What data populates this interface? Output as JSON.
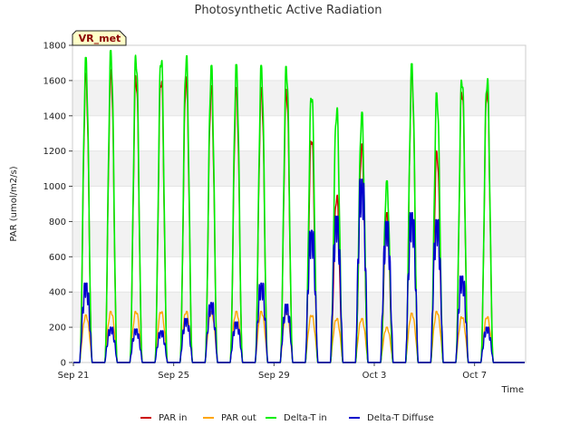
{
  "chart_data": {
    "type": "line",
    "title": "Photosynthetic Active Radiation",
    "xlabel": "Time",
    "ylabel": "PAR (umol/m2/s)",
    "badge": "VR_met",
    "ylim": [
      0,
      1800
    ],
    "yticks": [
      0,
      200,
      400,
      600,
      800,
      1000,
      1200,
      1400,
      1600,
      1800
    ],
    "xlim": [
      "2023-09-21",
      "2023-10-09"
    ],
    "xticks": [
      "Sep 21",
      "Sep 25",
      "Sep 29",
      "Oct 3",
      "Oct 7"
    ],
    "xtick_days": [
      0,
      4,
      8,
      12,
      16
    ],
    "grid": "horizontal bands",
    "legend_position": "bottom",
    "days": [
      "Sep 21",
      "Sep 22",
      "Sep 23",
      "Sep 24",
      "Sep 25",
      "Sep 26",
      "Sep 27",
      "Sep 28",
      "Sep 29",
      "Sep 30",
      "Oct 1",
      "Oct 2",
      "Oct 3",
      "Oct 4",
      "Oct 5",
      "Oct 6",
      "Oct 7",
      "Oct 8"
    ],
    "series": [
      {
        "name": "PAR in",
        "color": "#cc0000",
        "daily_peak": [
          1640,
          1660,
          1630,
          1630,
          1620,
          1570,
          1560,
          1560,
          1550,
          1290,
          950,
          1240,
          850,
          1650,
          1200,
          1560,
          1560,
          0
        ]
      },
      {
        "name": "PAR out",
        "color": "#ffa500",
        "daily_peak": [
          270,
          290,
          290,
          290,
          290,
          290,
          290,
          290,
          290,
          270,
          250,
          250,
          200,
          280,
          290,
          260,
          260,
          0
        ]
      },
      {
        "name": "Delta-T in",
        "color": "#00ee00",
        "daily_peak": [
          1730,
          1770,
          1745,
          1750,
          1740,
          1685,
          1690,
          1685,
          1680,
          1540,
          1445,
          1420,
          1030,
          1695,
          1530,
          1630,
          1620,
          0
        ]
      },
      {
        "name": "Delta-T Diffuse",
        "color": "#0000cc",
        "daily_peak": [
          450,
          200,
          190,
          180,
          250,
          340,
          230,
          450,
          330,
          750,
          830,
          1040,
          800,
          850,
          810,
          490,
          200,
          0
        ]
      }
    ]
  }
}
